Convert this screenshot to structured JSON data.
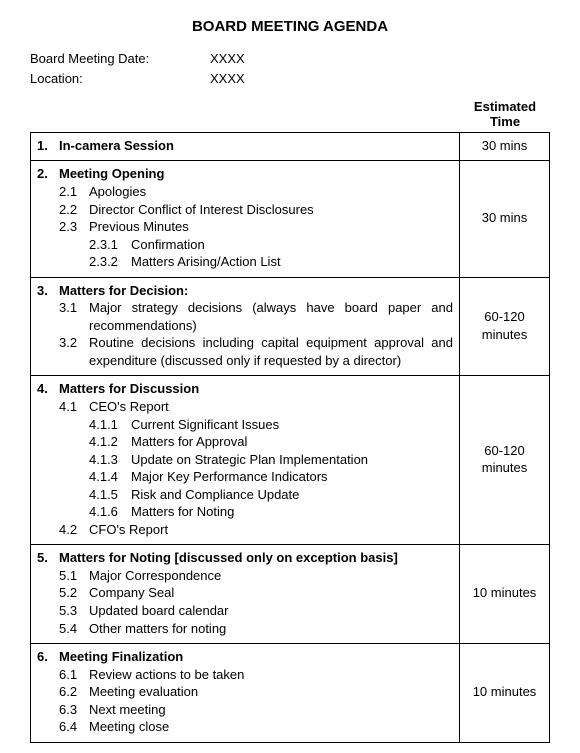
{
  "title": "BOARD MEETING AGENDA",
  "meta": {
    "dateLabel": "Board Meeting Date:",
    "dateValue": "XXXX",
    "locationLabel": "Location:",
    "locationValue": "XXXX"
  },
  "timeHeader": {
    "line1": "Estimated",
    "line2": "Time"
  },
  "sections": [
    {
      "num": "1.",
      "title": "In-camera Session",
      "time": "30 mins",
      "items": []
    },
    {
      "num": "2.",
      "title": "Meeting Opening",
      "time": "30 mins",
      "items": [
        {
          "num": "2.1",
          "text": "Apologies"
        },
        {
          "num": "2.2",
          "text": "Director Conflict of Interest Disclosures"
        },
        {
          "num": "2.3",
          "text": "Previous Minutes",
          "sub": [
            {
              "num": "2.3.1",
              "text": "Confirmation"
            },
            {
              "num": "2.3.2",
              "text": "Matters Arising/Action List"
            }
          ]
        }
      ]
    },
    {
      "num": "3.",
      "title": "Matters for Decision:",
      "time": "60-120 minutes",
      "items": [
        {
          "num": "3.1",
          "text": "Major strategy decisions (always have board paper and recommendations)"
        },
        {
          "num": "3.2",
          "text": "Routine decisions including capital equipment approval and expenditure (discussed only if requested by a director)"
        }
      ]
    },
    {
      "num": "4.",
      "title": "Matters for Discussion",
      "time": "60-120 minutes",
      "items": [
        {
          "num": "4.1",
          "text": "CEO's Report",
          "sub": [
            {
              "num": "4.1.1",
              "text": "Current Significant Issues"
            },
            {
              "num": "4.1.2",
              "text": "Matters for Approval"
            },
            {
              "num": "4.1.3",
              "text": "Update on Strategic Plan Implementation"
            },
            {
              "num": "4.1.4",
              "text": "Major Key Performance Indicators"
            },
            {
              "num": "4.1.5",
              "text": "Risk and Compliance Update"
            },
            {
              "num": "4.1.6",
              "text": "Matters for Noting"
            }
          ]
        },
        {
          "num": "4.2",
          "text": "CFO's Report"
        }
      ]
    },
    {
      "num": "5.",
      "title": "Matters for Noting [discussed only on exception basis]",
      "time": "10 minutes",
      "items": [
        {
          "num": "5.1",
          "text": "Major Correspondence"
        },
        {
          "num": "5.2",
          "text": "Company Seal"
        },
        {
          "num": "5.3",
          "text": "Updated board calendar"
        },
        {
          "num": "5.4",
          "text": "Other matters for noting"
        }
      ]
    },
    {
      "num": "6.",
      "title": "Meeting Finalization",
      "time": "10 minutes",
      "items": [
        {
          "num": "6.1",
          "text": "Review actions to be taken"
        },
        {
          "num": "6.2",
          "text": "Meeting evaluation"
        },
        {
          "num": "6.3",
          "text": "Next meeting"
        },
        {
          "num": "6.4",
          "text": "Meeting close"
        }
      ]
    }
  ],
  "style": {
    "font": "Arial",
    "baseSize": 13,
    "titleSize": 15,
    "color": "#000000",
    "bg": "#ffffff",
    "border": "#000000",
    "timeColWidth": 90
  }
}
